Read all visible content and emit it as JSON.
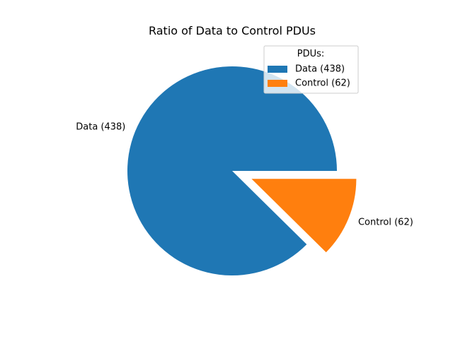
{
  "chart_data": {
    "type": "pie",
    "title": "Ratio of Data to Control PDUs",
    "categories": [
      "Data",
      "Control"
    ],
    "values": [
      438,
      62
    ],
    "slice_labels": [
      "Data (438)",
      "Control (62)"
    ],
    "colors": [
      "#1f77b4",
      "#ff7f0e"
    ],
    "exploded": [
      false,
      true
    ],
    "legend": {
      "title": "PDUs:",
      "entries": [
        "Data (438)",
        "Control (62)"
      ],
      "placement": "top-right"
    }
  }
}
